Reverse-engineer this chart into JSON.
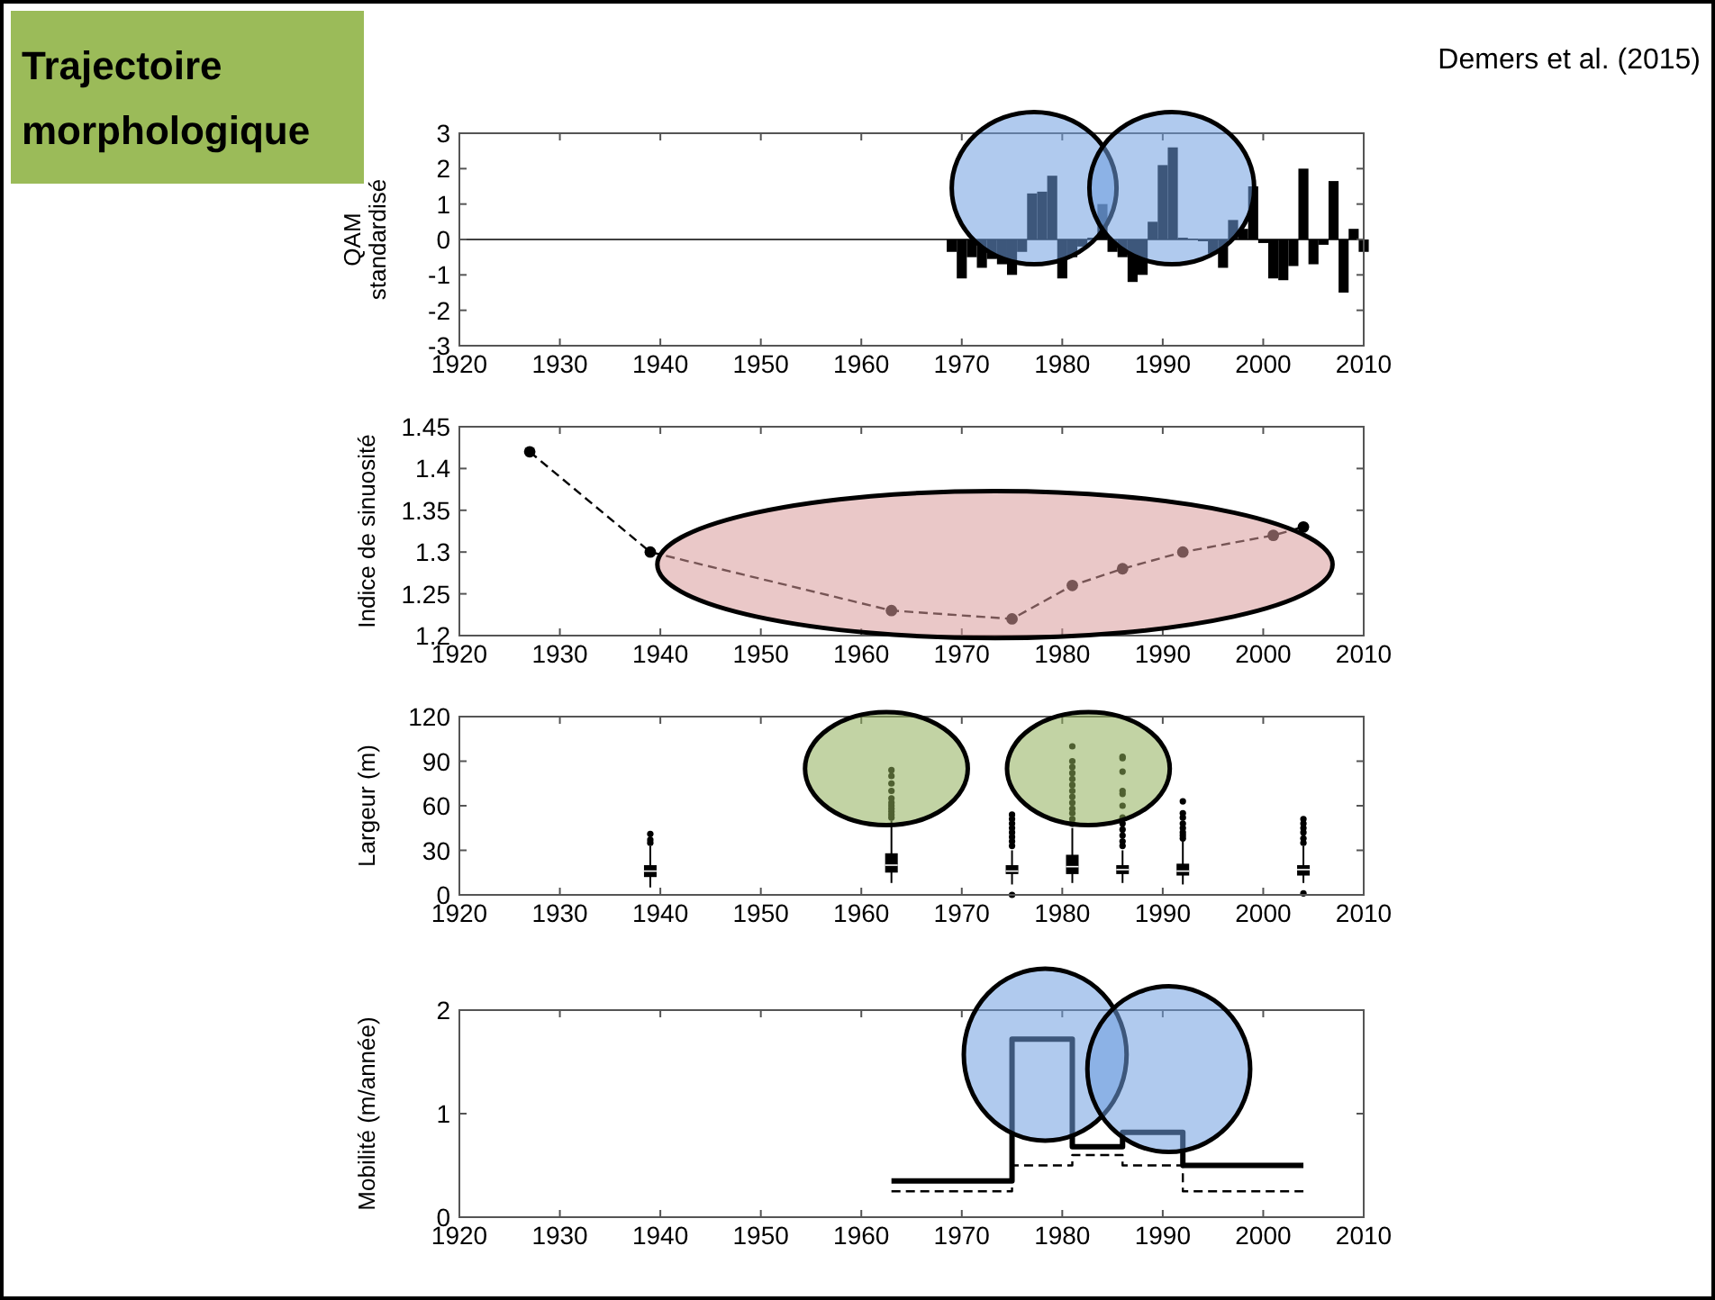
{
  "chart_data": [
    {
      "type": "bar",
      "title": "Trajectoire morphologique",
      "annotations": [
        "Demers et al. (2015)"
      ],
      "ylabel": "QAM standardisé",
      "color": "#000000",
      "x": [
        1969,
        1970,
        1971,
        1972,
        1973,
        1974,
        1975,
        1976,
        1977,
        1978,
        1979,
        1980,
        1981,
        1982,
        1983,
        1984,
        1985,
        1986,
        1987,
        1988,
        1989,
        1990,
        1991,
        1992,
        1993,
        1994,
        1995,
        1996,
        1997,
        1998,
        1999,
        2000,
        2001,
        2002,
        2003,
        2004,
        2005,
        2006,
        2007,
        2008,
        2009,
        2010
      ],
      "values": [
        -0.35,
        -1.1,
        -0.5,
        -0.8,
        -0.55,
        -0.7,
        -1.0,
        -0.35,
        1.3,
        1.35,
        1.8,
        -1.1,
        -0.5,
        -0.2,
        0.05,
        1.0,
        -0.35,
        -0.5,
        -1.2,
        -1.0,
        0.5,
        2.1,
        2.6,
        0.05,
        0.02,
        -0.05,
        -0.4,
        -0.8,
        0.55,
        0.3,
        1.5,
        -0.1,
        -1.1,
        -1.15,
        -0.75,
        2.0,
        -0.7,
        -0.15,
        1.65,
        -1.5,
        0.3,
        -0.35
      ],
      "xlim": [
        1920,
        2010
      ],
      "xticks": [
        1920,
        1930,
        1940,
        1950,
        1960,
        1970,
        1980,
        1990,
        2000,
        2010
      ],
      "ylim": [
        -3,
        3
      ],
      "yticks": [
        -3,
        -2,
        -1,
        0,
        1,
        2,
        3
      ]
    },
    {
      "type": "line",
      "ylabel": "Indice de sinuosité",
      "color": "#000000",
      "marker": "circle",
      "line_style": "dashed",
      "x": [
        1927,
        1939,
        1963,
        1975,
        1981,
        1986,
        1992,
        2001,
        2004
      ],
      "values": [
        1.42,
        1.3,
        1.23,
        1.22,
        1.26,
        1.28,
        1.3,
        1.32,
        1.33
      ],
      "xlim": [
        1920,
        2010
      ],
      "xticks": [
        1920,
        1930,
        1940,
        1950,
        1960,
        1970,
        1980,
        1990,
        2000,
        2010
      ],
      "ylim": [
        1.2,
        1.45
      ],
      "yticks": [
        1.2,
        1.25,
        1.3,
        1.35,
        1.4,
        1.45
      ]
    },
    {
      "type": "box",
      "ylabel": "Largeur (m)",
      "color": "#000000",
      "x": [
        1939,
        1963,
        1975,
        1981,
        1986,
        1992,
        2004
      ],
      "boxes": [
        {
          "low": 5,
          "q1": 12,
          "median": 16,
          "q3": 20,
          "high": 33,
          "outliers": [
            35,
            37,
            41
          ]
        },
        {
          "low": 8,
          "q1": 15,
          "median": 20,
          "q3": 28,
          "high": 50,
          "outliers": [
            52,
            54,
            56,
            58,
            60,
            62,
            65,
            70,
            75,
            80,
            84
          ]
        },
        {
          "low": 7,
          "q1": 14,
          "median": 16,
          "q3": 20,
          "high": 30,
          "outliers": [
            0,
            33,
            36,
            39,
            42,
            45,
            48,
            51,
            54
          ]
        },
        {
          "low": 8,
          "q1": 14,
          "median": 19,
          "q3": 27,
          "high": 45,
          "outliers": [
            48,
            51,
            55,
            58,
            62,
            66,
            70,
            74,
            78,
            82,
            86,
            90,
            100
          ]
        },
        {
          "low": 8,
          "q1": 14,
          "median": 17,
          "q3": 20,
          "high": 30,
          "outliers": [
            33,
            36,
            40,
            44,
            48,
            52,
            60,
            68,
            70,
            83,
            92,
            93
          ]
        },
        {
          "low": 7,
          "q1": 13,
          "median": 16,
          "q3": 21,
          "high": 36,
          "outliers": [
            38,
            40,
            42,
            45,
            48,
            52,
            55,
            63
          ]
        },
        {
          "low": 8,
          "q1": 13,
          "median": 17,
          "q3": 20,
          "high": 33,
          "outliers": [
            1,
            35,
            38,
            42,
            45,
            48,
            51
          ]
        }
      ],
      "xlim": [
        1920,
        2010
      ],
      "xticks": [
        1920,
        1930,
        1940,
        1950,
        1960,
        1970,
        1980,
        1990,
        2000,
        2010
      ],
      "ylim": [
        0,
        120
      ],
      "yticks": [
        0,
        30,
        60,
        90,
        120
      ]
    },
    {
      "type": "step",
      "ylabel": "Mobilité (m/année)",
      "x": [
        1963,
        1975,
        1981,
        1986,
        1992,
        2004
      ],
      "series": [
        {
          "color": "#000000",
          "line_style": "solid",
          "values": [
            0.35,
            1.72,
            0.68,
            0.82,
            0.5,
            0.5
          ]
        },
        {
          "color": "#000000",
          "line_style": "dashed",
          "values": [
            0.25,
            0.5,
            0.6,
            0.5,
            0.25,
            0.25
          ]
        }
      ],
      "xlim": [
        1920,
        2010
      ],
      "xticks": [
        1920,
        1930,
        1940,
        1950,
        1960,
        1970,
        1980,
        1990,
        2000,
        2010
      ],
      "ylim": [
        0,
        2
      ],
      "yticks": [
        0,
        1,
        2
      ]
    }
  ]
}
